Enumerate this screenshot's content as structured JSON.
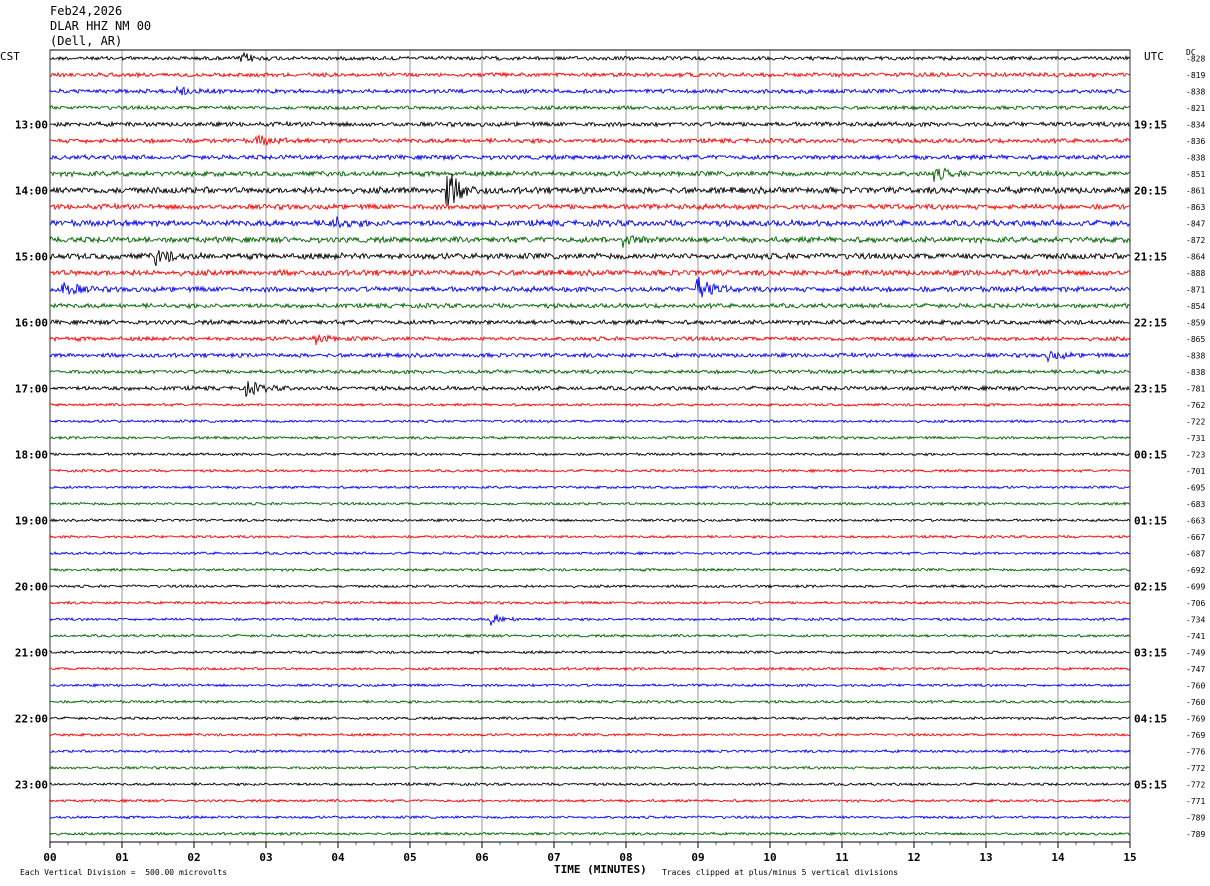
{
  "header": {
    "date": "Feb24,2026",
    "station": "DLAR HHZ NM 00",
    "location": "(Dell, AR)"
  },
  "left_zone": "CST",
  "right_zone": "UTC",
  "dc_label": "DC",
  "footer": {
    "left": "Each Vertical Division =  500.00 microvolts",
    "center": "TIME (MINUTES)",
    "right": "Traces clipped at plus/minus 5 vertical divisions"
  },
  "chart_data": {
    "type": "line",
    "title": "Feb24,2026 DLAR HHZ NM 00 (Dell, AR)",
    "xlabel": "TIME (MINUTES)",
    "xlim": [
      0,
      15
    ],
    "x_ticks": [
      "00",
      "01",
      "02",
      "03",
      "04",
      "05",
      "06",
      "07",
      "08",
      "09",
      "10",
      "11",
      "12",
      "13",
      "14",
      "15"
    ],
    "trace_minutes": 15,
    "colors": [
      "#000000",
      "#ff0000",
      "#0000ff",
      "#006400"
    ],
    "left_hour_labels": [
      "13:00",
      "14:00",
      "15:00",
      "16:00",
      "17:00",
      "18:00",
      "19:00",
      "20:00",
      "21:00",
      "22:00",
      "23:00"
    ],
    "right_hour_labels": [
      "19:15",
      "20:15",
      "21:15",
      "22:15",
      "23:15",
      "00:15",
      "01:15",
      "02:15",
      "03:15",
      "04:15",
      "05:15"
    ],
    "dc_offsets": [
      "-828",
      "-819",
      "-838",
      "-821",
      "-834",
      "-836",
      "-838",
      "-851",
      "-861",
      "-863",
      "-847",
      "-872",
      "-864",
      "-888",
      "-871",
      "-854",
      "-859",
      "-865",
      "-838",
      "-838",
      "-781",
      "-762",
      "-722",
      "-731",
      "-723",
      "-701",
      "-695",
      "-683",
      "-663",
      "-667",
      "-687",
      "-692",
      "-699",
      "-706",
      "-734",
      "-741",
      "-749",
      "-747",
      "-760",
      "-760",
      "-769",
      "-769",
      "-776",
      "-772",
      "-772",
      "-771",
      "-789",
      "-789"
    ],
    "amplitude_per_trace": [
      1.0,
      1.1,
      1.1,
      1.0,
      1.2,
      1.2,
      1.2,
      1.3,
      1.7,
      1.4,
      1.6,
      1.5,
      1.6,
      1.5,
      1.4,
      1.2,
      1.2,
      1.1,
      1.1,
      1.0,
      1.1,
      0.7,
      0.7,
      0.7,
      0.7,
      0.7,
      0.7,
      0.7,
      0.7,
      0.7,
      0.7,
      0.7,
      0.7,
      0.7,
      0.7,
      0.7,
      0.7,
      0.7,
      0.7,
      0.7,
      0.7,
      0.7,
      0.7,
      0.7,
      0.7,
      0.7,
      0.7,
      0.7
    ],
    "events": [
      {
        "trace": 0,
        "minute": 2.7,
        "amp": 2.0
      },
      {
        "trace": 2,
        "minute": 1.8,
        "amp": 2.0
      },
      {
        "trace": 5,
        "minute": 2.9,
        "amp": 2.0
      },
      {
        "trace": 7,
        "minute": 12.3,
        "amp": 2.5
      },
      {
        "trace": 8,
        "minute": 5.55,
        "amp": 5.0
      },
      {
        "trace": 10,
        "minute": 3.9,
        "amp": 2.2
      },
      {
        "trace": 11,
        "minute": 8.0,
        "amp": 2.0
      },
      {
        "trace": 12,
        "minute": 1.5,
        "amp": 2.3
      },
      {
        "trace": 14,
        "minute": 0.2,
        "amp": 3.0
      },
      {
        "trace": 14,
        "minute": 9.0,
        "amp": 4.5
      },
      {
        "trace": 17,
        "minute": 3.7,
        "amp": 2.0
      },
      {
        "trace": 18,
        "minute": 13.9,
        "amp": 2.0
      },
      {
        "trace": 20,
        "minute": 2.75,
        "amp": 3.0
      },
      {
        "trace": 34,
        "minute": 6.15,
        "amp": 4.0
      }
    ]
  }
}
